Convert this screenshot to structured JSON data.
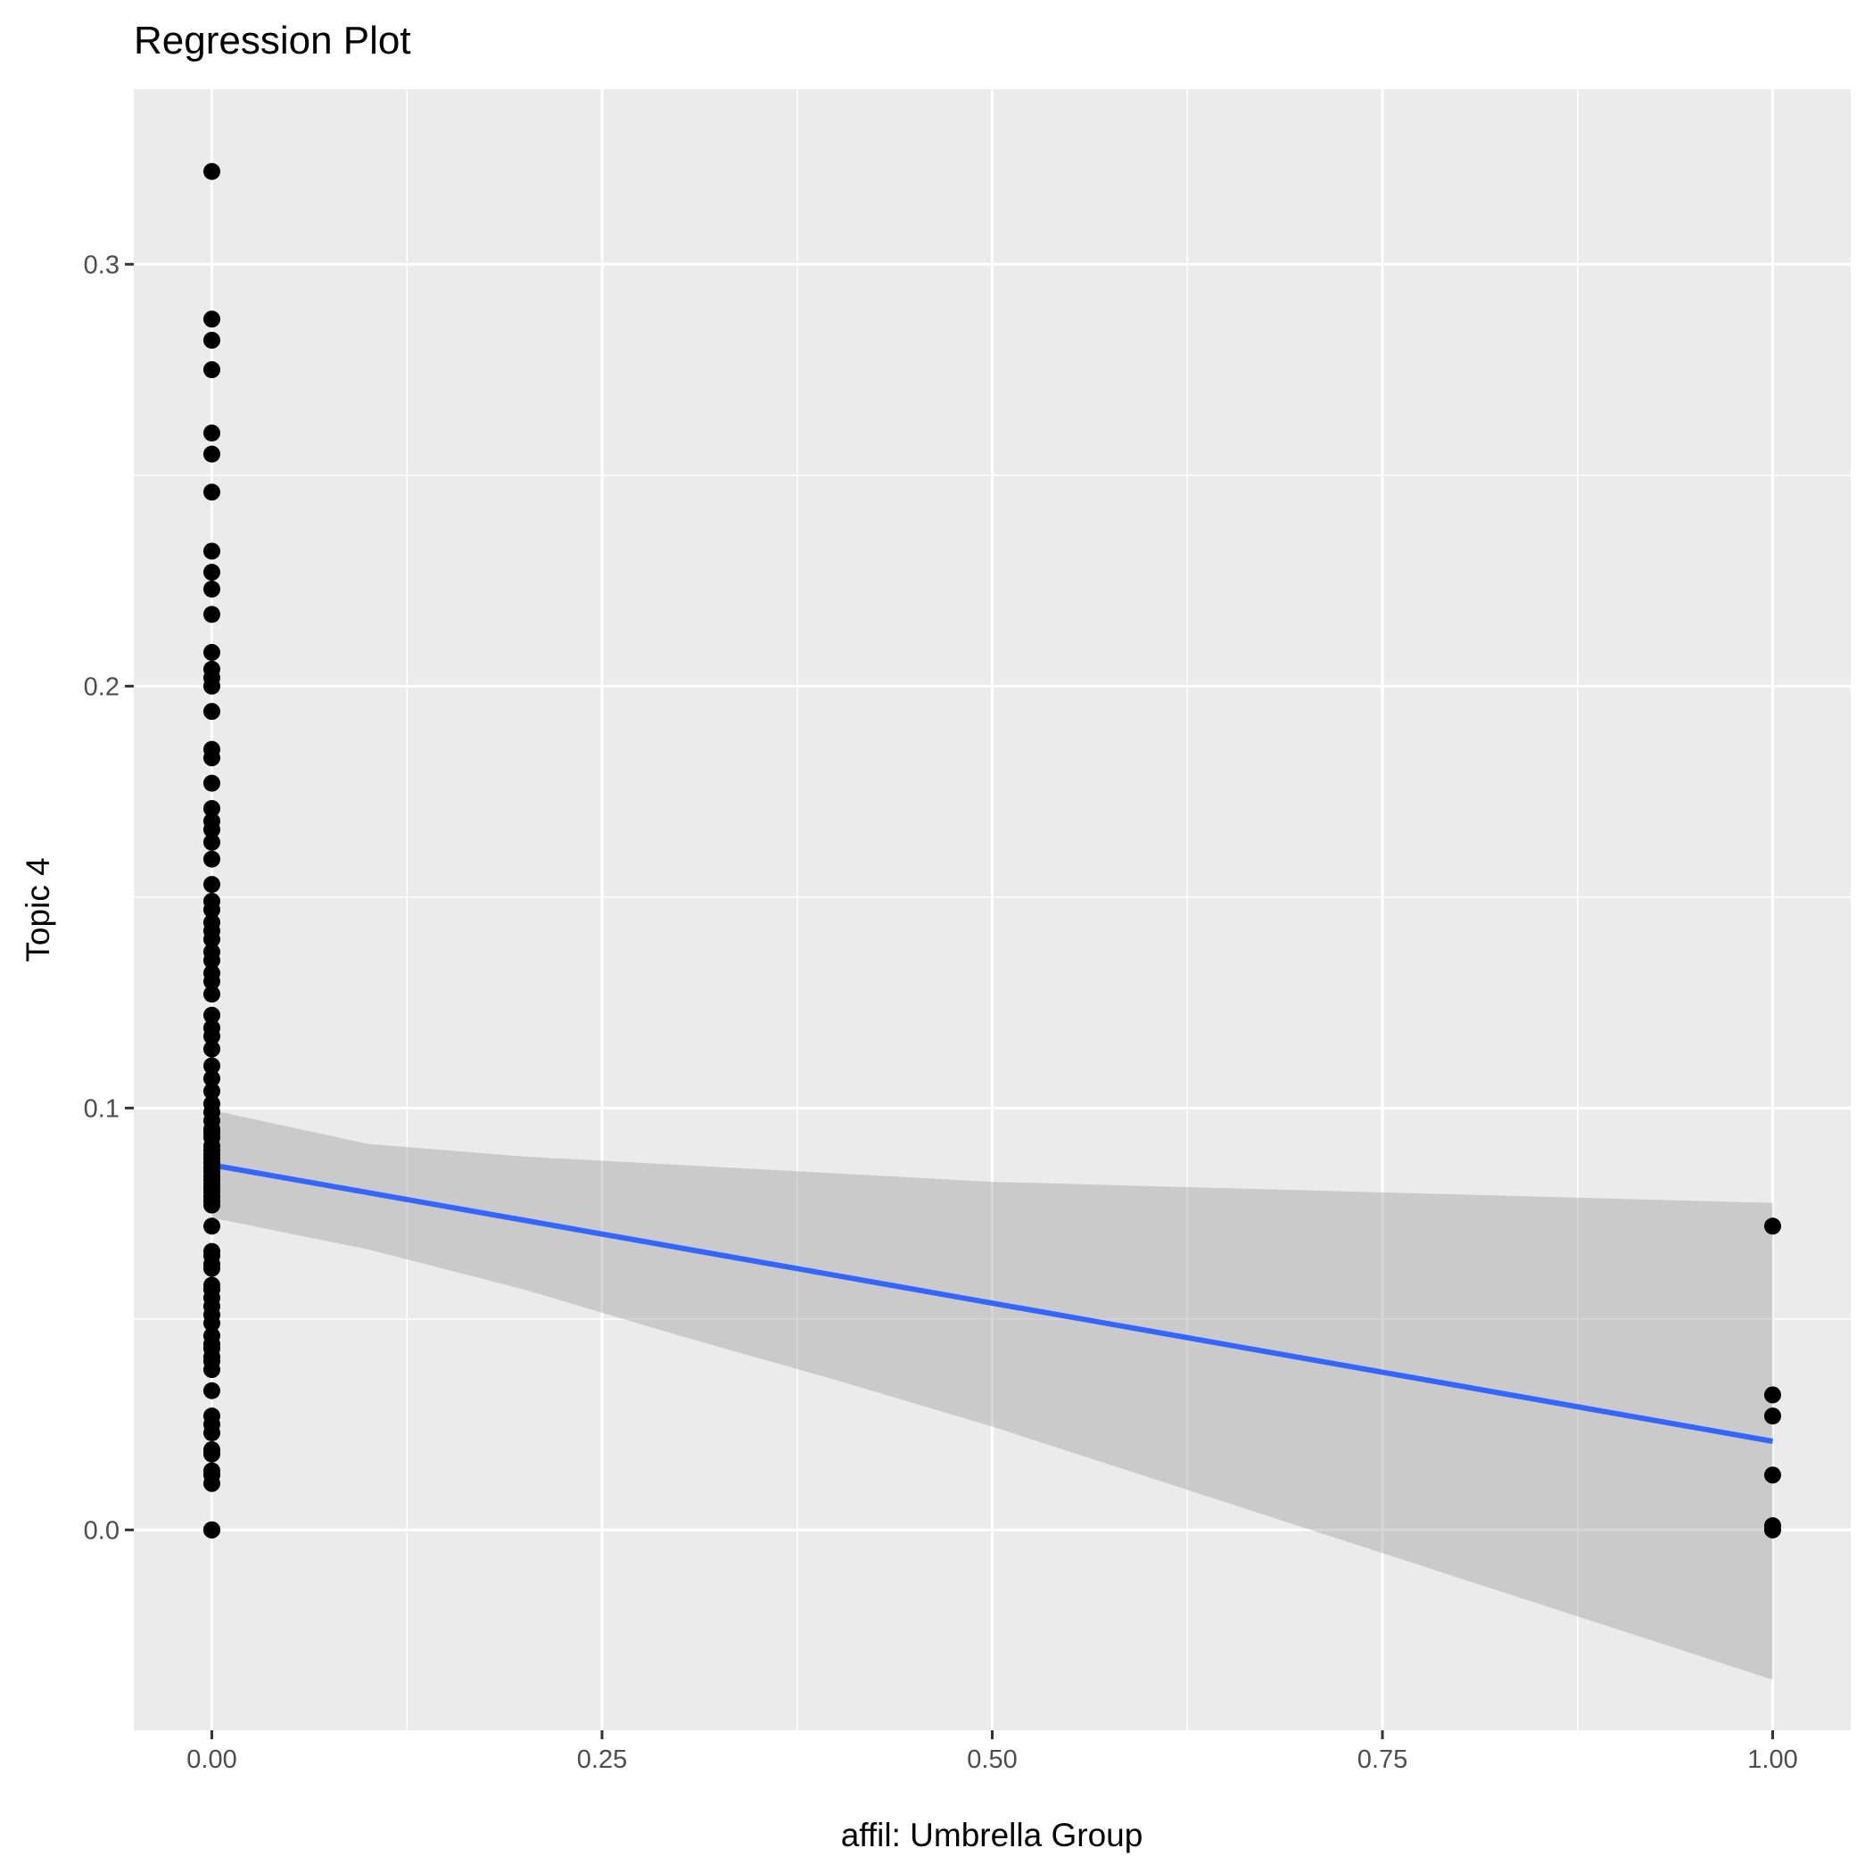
{
  "chart_data": {
    "type": "scatter",
    "title": "Regression Plot",
    "xlabel": "affil: Umbrella Group",
    "ylabel": "Topic 4",
    "xlim": [
      -0.05,
      1.05
    ],
    "ylim": [
      -0.0475,
      0.3415
    ],
    "x_ticks": [
      0,
      0.25,
      0.5,
      0.75,
      1.0
    ],
    "x_tick_labels": [
      "0.00",
      "0.25",
      "0.50",
      "0.75",
      "1.00"
    ],
    "y_ticks": [
      0,
      0.1,
      0.2,
      0.3
    ],
    "y_tick_labels": [
      "0.0",
      "0.1",
      "0.2",
      "0.3"
    ],
    "grid": true,
    "legend": "none",
    "colors": {
      "panel": "#ebebeb",
      "grid": "#ffffff",
      "points": "#000000",
      "fit_line": "#3366ff",
      "ci_band": "#999999"
    },
    "points": {
      "x0_y": [
        0.322,
        0.287,
        0.282,
        0.275,
        0.26,
        0.255,
        0.246,
        0.232,
        0.227,
        0.223,
        0.217,
        0.208,
        0.204,
        0.202,
        0.2,
        0.194,
        0.185,
        0.183,
        0.177,
        0.171,
        0.168,
        0.166,
        0.163,
        0.159,
        0.153,
        0.149,
        0.147,
        0.144,
        0.142,
        0.14,
        0.137,
        0.135,
        0.132,
        0.13,
        0.127,
        0.122,
        0.119,
        0.117,
        0.114,
        0.11,
        0.107,
        0.104,
        0.101,
        0.099,
        0.097,
        0.095,
        0.094,
        0.093,
        0.091,
        0.09,
        0.089,
        0.088,
        0.087,
        0.086,
        0.085,
        0.084,
        0.083,
        0.082,
        0.081,
        0.08,
        0.079,
        0.078,
        0.077,
        0.072,
        0.066,
        0.065,
        0.063,
        0.062,
        0.058,
        0.057,
        0.055,
        0.053,
        0.051,
        0.049,
        0.046,
        0.044,
        0.043,
        0.041,
        0.04,
        0.038,
        0.033,
        0.027,
        0.025,
        0.023,
        0.019,
        0.018,
        0.014,
        0.013,
        0.011,
        0.0,
        0.0,
        0.0
      ],
      "x1_y": [
        0.072,
        0.032,
        0.027,
        0.013,
        0.001,
        0.0
      ]
    },
    "fit": {
      "x": [
        0,
        1
      ],
      "y": [
        0.0865,
        0.021
      ]
    },
    "ci_band": {
      "x": [
        0,
        0.1,
        0.2,
        0.3,
        0.4,
        0.5,
        0.6,
        0.7,
        0.8,
        0.9,
        1.0
      ],
      "lower": [
        0.074,
        0.0665,
        0.057,
        0.046,
        0.0355,
        0.0245,
        0.0125,
        0.0005,
        -0.0115,
        -0.0235,
        -0.0355
      ],
      "upper": [
        0.0995,
        0.0915,
        0.0885,
        0.0865,
        0.0845,
        0.0825,
        0.0815,
        0.0805,
        0.0795,
        0.0785,
        0.0775
      ]
    }
  }
}
